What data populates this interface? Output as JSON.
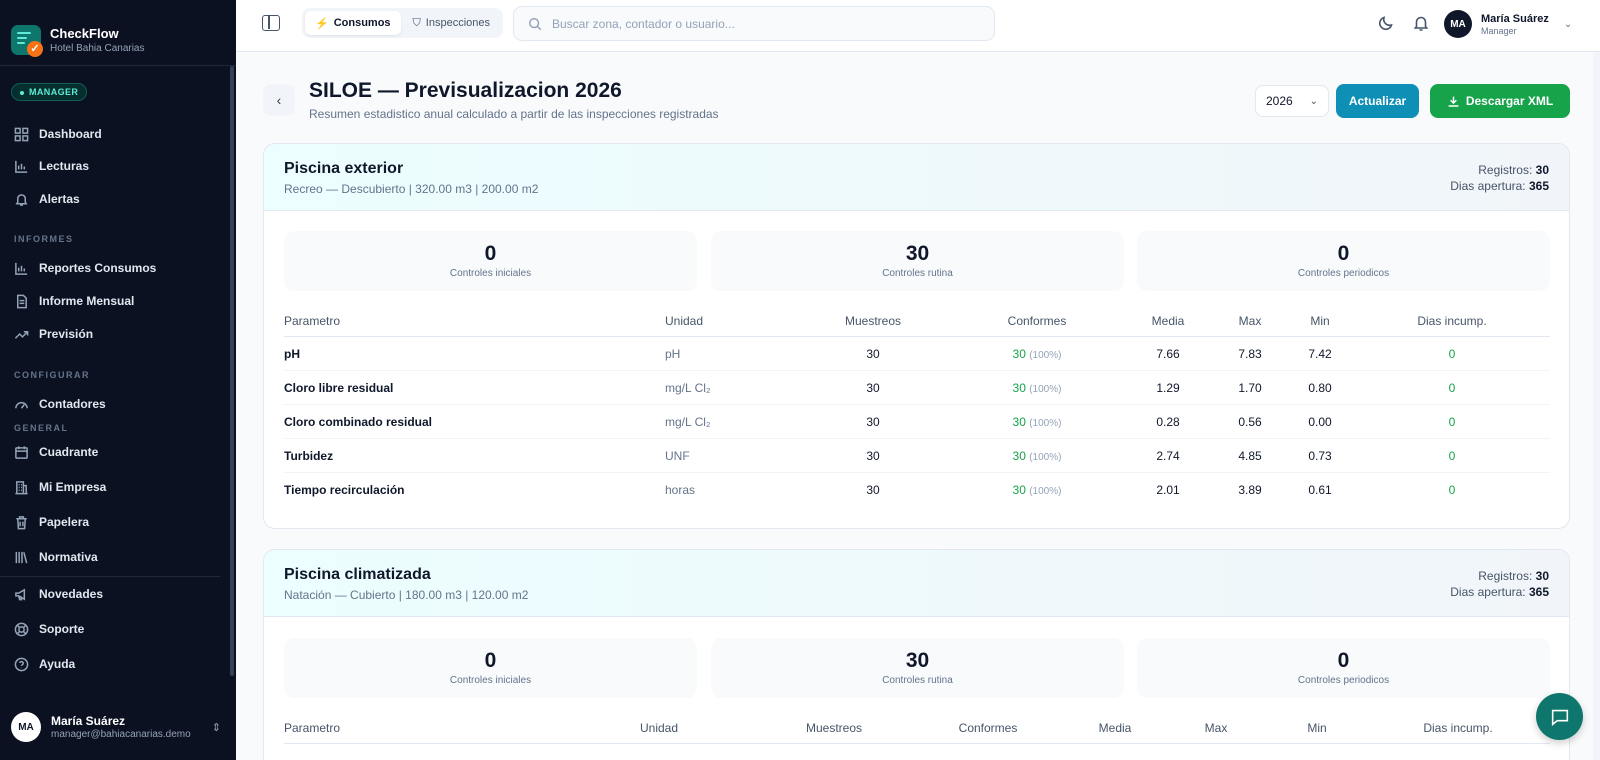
{
  "app": {
    "name": "CheckFlow",
    "org": "Hotel Bahia Canarias",
    "role_badge": "MANAGER"
  },
  "sidebar": {
    "main": [
      {
        "label": "Dashboard",
        "icon": "grid-icon"
      },
      {
        "label": "Lecturas",
        "icon": "bar-chart-icon"
      },
      {
        "label": "Alertas",
        "icon": "bell-icon"
      }
    ],
    "sections": {
      "informes": "INFORMES",
      "configurar": "CONFIGURAR",
      "general": "GENERAL"
    },
    "informes": [
      {
        "label": "Reportes Consumos",
        "icon": "bar-chart-icon"
      },
      {
        "label": "Informe Mensual",
        "icon": "document-icon"
      },
      {
        "label": "Previsión",
        "icon": "trend-up-icon"
      }
    ],
    "configurar": [
      {
        "label": "Contadores",
        "icon": "gauge-icon"
      }
    ],
    "general": [
      {
        "label": "Cuadrante",
        "icon": "calendar-icon"
      },
      {
        "label": "Mi Empresa",
        "icon": "building-icon"
      },
      {
        "label": "Papelera",
        "icon": "trash-icon"
      },
      {
        "label": "Normativa",
        "icon": "library-icon"
      }
    ],
    "bottom": [
      {
        "label": "Novedades",
        "icon": "megaphone-icon"
      },
      {
        "label": "Soporte",
        "icon": "lifebuoy-icon"
      },
      {
        "label": "Ayuda",
        "icon": "help-circle-icon"
      }
    ],
    "user": {
      "initials": "MA",
      "name": "María Suárez",
      "email": "manager@bahiacanarias.demo"
    }
  },
  "topbar": {
    "tabs": [
      {
        "label": "Consumos",
        "active": true
      },
      {
        "label": "Inspecciones",
        "active": false
      }
    ],
    "search_placeholder": "Buscar zona, contador o usuario...",
    "user": {
      "initials": "MA",
      "name": "María Suárez",
      "role": "Manager"
    }
  },
  "page": {
    "title": "SILOE — Previsualizacion 2026",
    "subtitle": "Resumen estadistico anual calculado a partir de las inspecciones registradas",
    "year": "2026",
    "update_label": "Actualizar",
    "download_label": "Descargar XML"
  },
  "labels": {
    "registros": "Registros:",
    "dias_apertura": "Dias apertura:",
    "controles_iniciales": "Controles iniciales",
    "controles_rutina": "Controles rutina",
    "controles_periodicos": "Controles periodicos",
    "columns": [
      "Parametro",
      "Unidad",
      "Muestreos",
      "Conformes",
      "Media",
      "Max",
      "Min",
      "Dias incump."
    ]
  },
  "pools": [
    {
      "name": "Piscina exterior",
      "desc": "Recreo — Descubierto | 320.00 m3 | 200.00 m2",
      "registros": "30",
      "dias_apertura": "365",
      "controles_iniciales": "0",
      "controles_rutina": "30",
      "controles_periodicos": "0",
      "rows": [
        {
          "param": "pH",
          "unit": "pH",
          "muestreos": "30",
          "conformes": "30",
          "pct": "(100%)",
          "media": "7.66",
          "max": "7.83",
          "min": "7.42",
          "incump": "0"
        },
        {
          "param": "Cloro libre residual",
          "unit": "mg/L Cl₂",
          "muestreos": "30",
          "conformes": "30",
          "pct": "(100%)",
          "media": "1.29",
          "max": "1.70",
          "min": "0.80",
          "incump": "0"
        },
        {
          "param": "Cloro combinado residual",
          "unit": "mg/L Cl₂",
          "muestreos": "30",
          "conformes": "30",
          "pct": "(100%)",
          "media": "0.28",
          "max": "0.56",
          "min": "0.00",
          "incump": "0"
        },
        {
          "param": "Turbidez",
          "unit": "UNF",
          "muestreos": "30",
          "conformes": "30",
          "pct": "(100%)",
          "media": "2.74",
          "max": "4.85",
          "min": "0.73",
          "incump": "0"
        },
        {
          "param": "Tiempo recirculación",
          "unit": "horas",
          "muestreos": "30",
          "conformes": "30",
          "pct": "(100%)",
          "media": "2.01",
          "max": "3.89",
          "min": "0.61",
          "incump": "0"
        }
      ]
    },
    {
      "name": "Piscina climatizada",
      "desc": "Natación — Cubierto | 180.00 m3 | 120.00 m2",
      "registros": "30",
      "dias_apertura": "365",
      "controles_iniciales": "0",
      "controles_rutina": "30",
      "controles_periodicos": "0"
    }
  ]
}
